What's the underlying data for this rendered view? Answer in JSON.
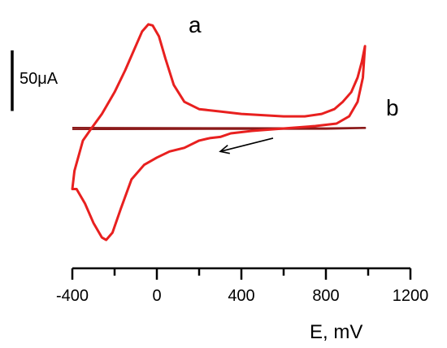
{
  "chart_data": {
    "type": "line",
    "title": "",
    "xlabel": "E, mV",
    "ylabel": "",
    "xlim": [
      -400,
      1200
    ],
    "x_ticks": [
      -400,
      0,
      400,
      800,
      1200
    ],
    "x_tick_labels": [
      "-400",
      "0",
      "400",
      "800",
      "1200"
    ],
    "current_scale_label": "50μA",
    "current_scale_value_uA": 50,
    "ylim_uA": [
      -95,
      90
    ],
    "series": [
      {
        "name": "a",
        "color": "#e8201f",
        "closed": true,
        "points": [
          {
            "x": 985,
            "y": 68
          },
          {
            "x": 970,
            "y": 55
          },
          {
            "x": 950,
            "y": 42
          },
          {
            "x": 920,
            "y": 30
          },
          {
            "x": 880,
            "y": 22
          },
          {
            "x": 840,
            "y": 16
          },
          {
            "x": 780,
            "y": 12
          },
          {
            "x": 700,
            "y": 10
          },
          {
            "x": 600,
            "y": 10
          },
          {
            "x": 500,
            "y": 11
          },
          {
            "x": 400,
            "y": 12
          },
          {
            "x": 300,
            "y": 14
          },
          {
            "x": 200,
            "y": 16
          },
          {
            "x": 130,
            "y": 22
          },
          {
            "x": 80,
            "y": 36
          },
          {
            "x": 40,
            "y": 58
          },
          {
            "x": 10,
            "y": 76
          },
          {
            "x": -20,
            "y": 85
          },
          {
            "x": -40,
            "y": 86
          },
          {
            "x": -70,
            "y": 80
          },
          {
            "x": -110,
            "y": 64
          },
          {
            "x": -150,
            "y": 48
          },
          {
            "x": -200,
            "y": 30
          },
          {
            "x": -260,
            "y": 12
          },
          {
            "x": -310,
            "y": 0
          },
          {
            "x": -350,
            "y": -10
          },
          {
            "x": -390,
            "y": -35
          },
          {
            "x": -400,
            "y": -50
          },
          {
            "x": -380,
            "y": -50
          },
          {
            "x": -340,
            "y": -62
          },
          {
            "x": -300,
            "y": -78
          },
          {
            "x": -260,
            "y": -90
          },
          {
            "x": -240,
            "y": -92
          },
          {
            "x": -210,
            "y": -86
          },
          {
            "x": -170,
            "y": -66
          },
          {
            "x": -120,
            "y": -42
          },
          {
            "x": -60,
            "y": -30
          },
          {
            "x": 0,
            "y": -24
          },
          {
            "x": 60,
            "y": -19
          },
          {
            "x": 130,
            "y": -16
          },
          {
            "x": 200,
            "y": -10
          },
          {
            "x": 250,
            "y": -8
          },
          {
            "x": 300,
            "y": -7
          },
          {
            "x": 350,
            "y": -4
          },
          {
            "x": 450,
            "y": -2
          },
          {
            "x": 600,
            "y": 0
          },
          {
            "x": 750,
            "y": 2
          },
          {
            "x": 850,
            "y": 4
          },
          {
            "x": 910,
            "y": 10
          },
          {
            "x": 950,
            "y": 22
          },
          {
            "x": 975,
            "y": 42
          },
          {
            "x": 985,
            "y": 68
          }
        ]
      },
      {
        "name": "b",
        "color": "#8b1a1a",
        "closed": false,
        "points": [
          {
            "x": -400,
            "y": 0.5
          },
          {
            "x": 0,
            "y": 0.3
          },
          {
            "x": 400,
            "y": 0.2
          },
          {
            "x": 800,
            "y": 0.1
          },
          {
            "x": 985,
            "y": 0.5
          },
          {
            "x": 800,
            "y": -0.2
          },
          {
            "x": 400,
            "y": -0.3
          },
          {
            "x": 0,
            "y": -0.4
          },
          {
            "x": -400,
            "y": -0.5
          }
        ]
      }
    ],
    "annotations": [
      {
        "type": "arrow",
        "from": {
          "x": 550,
          "y": -8
        },
        "to": {
          "x": 300,
          "y": -19
        }
      }
    ]
  }
}
